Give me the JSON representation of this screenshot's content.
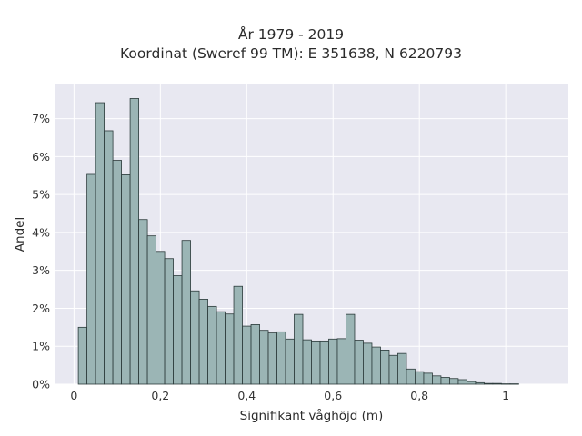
{
  "chart_data": {
    "type": "bar",
    "title_line1": "År 1979 - 2019",
    "title_line2": "Koordinat (Sweref 99 TM): E 351638, N 6220793",
    "xlabel": "Signifikant våghöjd (m)",
    "ylabel": "Andel",
    "xlim": [
      -0.045,
      1.145
    ],
    "ylim": [
      0,
      7.9
    ],
    "x_ticks": [
      {
        "value": 0,
        "label": "0"
      },
      {
        "value": 0.2,
        "label": "0,2"
      },
      {
        "value": 0.4,
        "label": "0,4"
      },
      {
        "value": 0.6,
        "label": "0,6"
      },
      {
        "value": 0.8,
        "label": "0,8"
      },
      {
        "value": 1.0,
        "label": "1"
      }
    ],
    "y_ticks": [
      {
        "value": 0,
        "label": "0%"
      },
      {
        "value": 1,
        "label": "1%"
      },
      {
        "value": 2,
        "label": "2%"
      },
      {
        "value": 3,
        "label": "3%"
      },
      {
        "value": 4,
        "label": "4%"
      },
      {
        "value": 5,
        "label": "5%"
      },
      {
        "value": 6,
        "label": "6%"
      },
      {
        "value": 7,
        "label": "7%"
      }
    ],
    "bin_start": 0.01,
    "bin_width": 0.02,
    "values": [
      1.5,
      5.53,
      7.42,
      6.68,
      5.9,
      5.52,
      7.53,
      4.34,
      3.91,
      3.5,
      3.31,
      2.86,
      3.79,
      2.46,
      2.24,
      2.05,
      1.91,
      1.85,
      2.58,
      1.53,
      1.57,
      1.42,
      1.35,
      1.38,
      1.19,
      1.84,
      1.17,
      1.14,
      1.14,
      1.19,
      1.2,
      1.84,
      1.16,
      1.08,
      0.98,
      0.9,
      0.76,
      0.81,
      0.4,
      0.33,
      0.29,
      0.22,
      0.18,
      0.15,
      0.12,
      0.07,
      0.04,
      0.02,
      0.02,
      0.01,
      0.01
    ],
    "colors": {
      "plot_bg": "#e8e8f1",
      "grid": "#ffffff",
      "bar_fill": "#9bb5b5",
      "bar_stroke": "#2b3a3a"
    }
  }
}
